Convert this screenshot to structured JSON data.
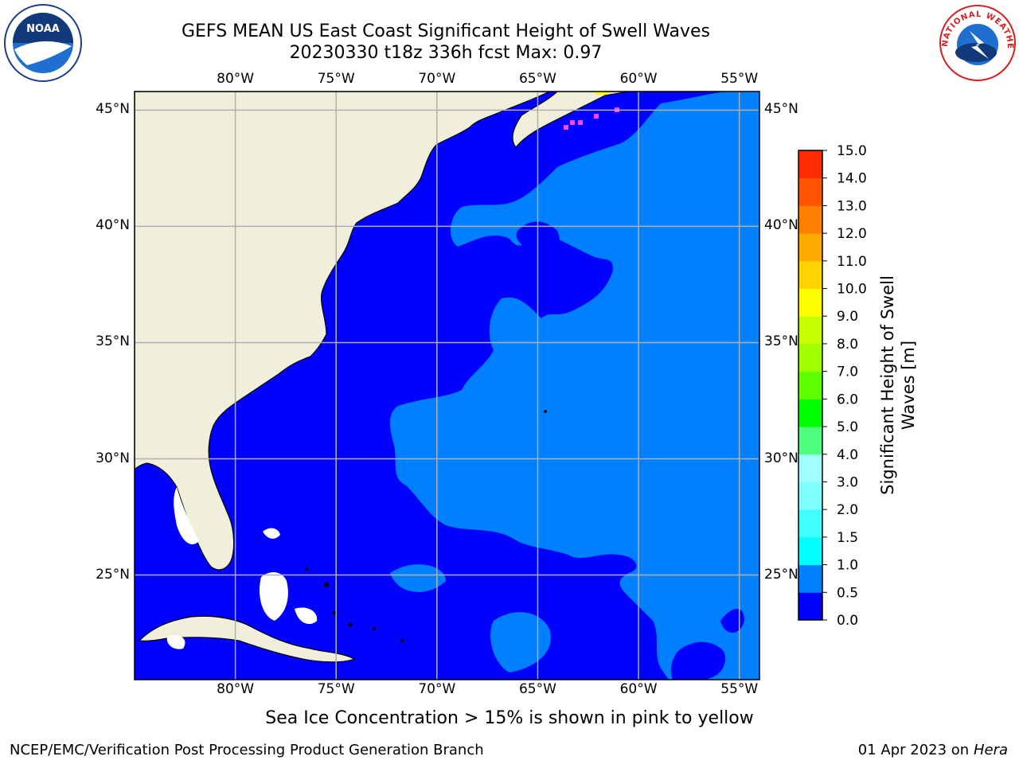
{
  "title": {
    "line1": "GEFS MEAN US East Coast Significant Height of Swell Waves",
    "line2": "20230330 t18z 336h fcst   Max: 0.97"
  },
  "map": {
    "lon_range": [
      -85,
      -54
    ],
    "lat_range": [
      20.5,
      45.8
    ],
    "lon_ticks": [
      {
        "value": -80,
        "label": "80°W"
      },
      {
        "value": -75,
        "label": "75°W"
      },
      {
        "value": -70,
        "label": "70°W"
      },
      {
        "value": -65,
        "label": "65°W"
      },
      {
        "value": -60,
        "label": "60°W"
      },
      {
        "value": -55,
        "label": "55°W"
      }
    ],
    "lat_ticks": [
      {
        "value": 45,
        "label": "45°N"
      },
      {
        "value": 40,
        "label": "40°N"
      },
      {
        "value": 35,
        "label": "35°N"
      },
      {
        "value": 30,
        "label": "30°N"
      },
      {
        "value": 25,
        "label": "25°N"
      }
    ],
    "colors": {
      "land": "#efefdc",
      "sea_low": "#0000ff",
      "sea_mid": "#0080ff",
      "grid": "#b0b0b0",
      "ice_pink": "#ff44ff",
      "ice_yellow": "#ffff00"
    }
  },
  "colorbar": {
    "label": "Significant Height of Swell Waves [m]",
    "levels": [
      "0.0",
      "0.5",
      "1.0",
      "1.5",
      "2.0",
      "3.0",
      "4.0",
      "5.0",
      "6.0",
      "7.0",
      "8.0",
      "9.0",
      "10.0",
      "11.0",
      "12.0",
      "13.0",
      "14.0",
      "15.0"
    ],
    "colors": [
      "#0000ff",
      "#0080ff",
      "#00ffff",
      "#40ffff",
      "#80ffff",
      "#a0ffff",
      "#50ff80",
      "#00ff00",
      "#60ff00",
      "#a0ff00",
      "#c8ff00",
      "#ffff00",
      "#ffd400",
      "#ffaa00",
      "#ff8000",
      "#ff5500",
      "#ff2a00",
      "#ff0000"
    ]
  },
  "caption": "Sea Ice Concentration > 15% is shown in pink to yellow",
  "footer": {
    "left": "NCEP/EMC/Verification Post Processing Product Generation Branch",
    "right_date": "01 Apr 2023 on ",
    "right_host": "Hera"
  },
  "logos": {
    "noaa": "NOAA",
    "nws": "NATIONAL WEATHER SERVICE"
  }
}
